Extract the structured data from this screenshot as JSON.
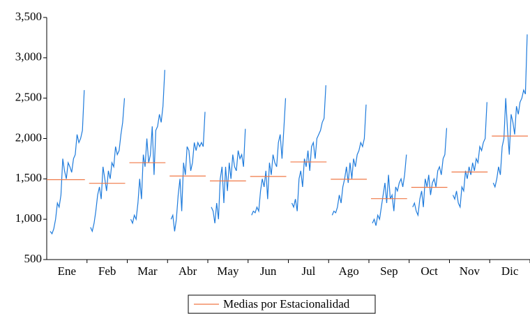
{
  "chart_data": {
    "type": "seasonal",
    "categories": [
      "Ene",
      "Feb",
      "Mar",
      "Abr",
      "May",
      "Jun",
      "Jul",
      "Ago",
      "Sep",
      "Oct",
      "Nov",
      "Dic"
    ],
    "subseries": {
      "color": "#1e7bdc",
      "values": [
        [
          850,
          820,
          880,
          1000,
          1200,
          1150,
          1300,
          1750,
          1600,
          1500,
          1700,
          1650,
          1580,
          1750,
          1800,
          2050,
          1950,
          2000,
          2100,
          2600
        ],
        [
          900,
          850,
          950,
          1100,
          1300,
          1400,
          1250,
          1650,
          1500,
          1350,
          1600,
          1500,
          1700,
          1650,
          1900,
          1800,
          1850,
          2050,
          2200,
          2500
        ],
        [
          1000,
          950,
          1050,
          1000,
          1200,
          1500,
          1250,
          1800,
          1650,
          2000,
          1700,
          1800,
          2150,
          1550,
          2100,
          2150,
          2300,
          2200,
          2400,
          2850
        ],
        [
          1000,
          1050,
          850,
          1000,
          1300,
          1500,
          1100,
          1700,
          1550,
          1900,
          1850,
          1600,
          1700,
          1950,
          1850,
          1950,
          1900,
          1950,
          1900,
          2330
        ],
        [
          1150,
          1100,
          950,
          1200,
          1000,
          1500,
          1650,
          1200,
          1650,
          1350,
          1700,
          1500,
          1800,
          1650,
          1600,
          1850,
          1750,
          1800,
          1650,
          2120
        ],
        [
          1050,
          1100,
          1080,
          1150,
          1100,
          1350,
          1500,
          1400,
          1600,
          1250,
          1700,
          1550,
          1800,
          1700,
          1650,
          1950,
          2050,
          1750,
          2100,
          2500
        ],
        [
          1200,
          1150,
          1250,
          1100,
          1500,
          1600,
          1400,
          1750,
          1650,
          1850,
          1600,
          1900,
          1950,
          1750,
          2000,
          2050,
          2100,
          2200,
          2250,
          2660
        ],
        [
          1050,
          1100,
          1080,
          1150,
          1300,
          1200,
          1400,
          1500,
          1650,
          1450,
          1700,
          1500,
          1750,
          1650,
          1800,
          1850,
          1950,
          1900,
          2000,
          2420
        ],
        [
          950,
          1000,
          920,
          1050,
          1000,
          1150,
          1300,
          1450,
          1200,
          1550,
          1250,
          1300,
          1100,
          1400,
          1350,
          1450,
          1500,
          1400,
          1550,
          1800
        ],
        [
          1150,
          1200,
          1100,
          1050,
          1250,
          1350,
          1150,
          1500,
          1400,
          1550,
          1300,
          1450,
          1500,
          1400,
          1600,
          1650,
          1550,
          1750,
          1800,
          2130
        ],
        [
          1300,
          1250,
          1350,
          1200,
          1150,
          1400,
          1350,
          1600,
          1500,
          1650,
          1550,
          1700,
          1600,
          1750,
          1700,
          1900,
          1850,
          1950,
          2000,
          2450
        ],
        [
          1450,
          1400,
          1500,
          1650,
          1550,
          1900,
          2000,
          2500,
          2100,
          1800,
          2300,
          2200,
          2050,
          2400,
          2300,
          2450,
          2500,
          2600,
          2550,
          3290
        ]
      ]
    },
    "means": {
      "name": "Medias por Estacionalidad",
      "color": "#f07846",
      "values": [
        1490,
        1445,
        1700,
        1535,
        1475,
        1530,
        1710,
        1495,
        1255,
        1395,
        1585,
        2030
      ]
    },
    "ylim": [
      500,
      3500
    ],
    "yticks": [
      {
        "value": 500,
        "label": "500"
      },
      {
        "value": 1000,
        "label": "1,000"
      },
      {
        "value": 1500,
        "label": "1,500"
      },
      {
        "value": 2000,
        "label": "2,000"
      },
      {
        "value": 2500,
        "label": "2,500"
      },
      {
        "value": 3000,
        "label": "3,000"
      },
      {
        "value": 3500,
        "label": "3,500"
      }
    ],
    "legend": "bottom"
  }
}
